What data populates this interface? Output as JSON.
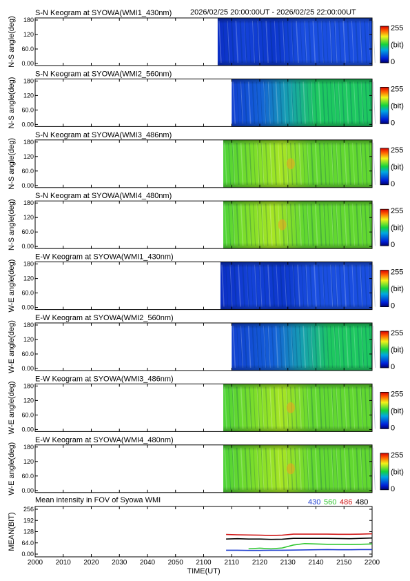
{
  "header": {
    "time_range": "2026/02/25 20:00:00UT - 2026/02/25 22:00:00UT"
  },
  "colorbar": {
    "max_label": "255",
    "unit_label": "(bit)",
    "min_label": "0"
  },
  "panels": [
    {
      "title": "S-N Keogram at SYOWA(WMI1_430nm)",
      "ylabel": "N-S angle(deg)",
      "palette": "blue"
    },
    {
      "title": "S-N Keogram at SYOWA(WMI2_560nm)",
      "ylabel": "N-S angle(deg)",
      "palette": "bluegreen"
    },
    {
      "title": "S-N Keogram at SYOWA(WMI3_486nm)",
      "ylabel": "N-S angle(deg)",
      "palette": "green"
    },
    {
      "title": "S-N Keogram at SYOWA(WMI4_480nm)",
      "ylabel": "N-S angle(deg)",
      "palette": "green"
    },
    {
      "title": "E-W Keogram at SYOWA(WMI1_430nm)",
      "ylabel": "W-E angle(deg)",
      "palette": "blue"
    },
    {
      "title": "E-W Keogram at SYOWA(WMI2_560nm)",
      "ylabel": "W-E angle(deg)",
      "palette": "bluegreen"
    },
    {
      "title": "E-W Keogram at SYOWA(WMI3_486nm)",
      "ylabel": "W-E angle(deg)",
      "palette": "green"
    },
    {
      "title": "E-W Keogram at SYOWA(WMI4_480nm)",
      "ylabel": "W-E angle(deg)",
      "palette": "green"
    }
  ],
  "keogram_yticks": [
    "180",
    "120",
    "60.0",
    "0.00"
  ],
  "mean_panel": {
    "title": "Mean intensity in FOV of Syowa WMI",
    "ylabel": "MEAN(BIT)",
    "yticks": [
      "256",
      "192",
      "128",
      "64.0",
      "0.00"
    ],
    "legend": [
      {
        "label": "430",
        "color": "#1f3fd0"
      },
      {
        "label": "560",
        "color": "#2ec62e"
      },
      {
        "label": "486",
        "color": "#d01818"
      },
      {
        "label": "480",
        "color": "#000000"
      }
    ]
  },
  "xaxis": {
    "ticks": [
      "2000",
      "2010",
      "2020",
      "2030",
      "2040",
      "2050",
      "2100",
      "2110",
      "2120",
      "2130",
      "2140",
      "2150",
      "2200"
    ],
    "label": "TIME(UT)"
  },
  "chart_data": {
    "type": "line",
    "title": "Mean intensity in FOV of Syowa WMI",
    "xlabel": "TIME(UT)",
    "ylabel": "MEAN(BIT)",
    "xlim": [
      0,
      120
    ],
    "ylim": [
      0,
      256
    ],
    "x_unit": "minutes since 20:00 UT",
    "x": [
      68,
      72,
      76,
      80,
      84,
      88,
      92,
      96,
      100,
      104,
      108,
      112,
      116,
      120
    ],
    "series": [
      {
        "name": "430",
        "color": "#1f3fd0",
        "values": [
          22,
          22,
          21,
          21,
          22,
          22,
          23,
          24,
          25,
          26,
          25,
          25,
          26,
          26
        ]
      },
      {
        "name": "560",
        "color": "#2ec62e",
        "values": [
          null,
          null,
          30,
          34,
          30,
          35,
          52,
          60,
          58,
          56,
          56,
          55,
          56,
          58
        ]
      },
      {
        "name": "486",
        "color": "#d01818",
        "values": [
          112,
          110,
          109,
          108,
          106,
          108,
          114,
          114,
          114,
          114,
          113,
          113,
          114,
          116
        ]
      },
      {
        "name": "480",
        "color": "#000000",
        "values": [
          86,
          88,
          86,
          86,
          84,
          85,
          90,
          90,
          90,
          90,
          89,
          88,
          90,
          92
        ]
      }
    ]
  },
  "keogram_data": {
    "data_start_minutes": [
      65,
      70,
      67,
      67,
      66,
      70,
      67,
      67
    ],
    "bright_band_center_minutes": [
      85,
      90,
      88,
      85,
      88,
      95,
      88,
      88
    ]
  }
}
